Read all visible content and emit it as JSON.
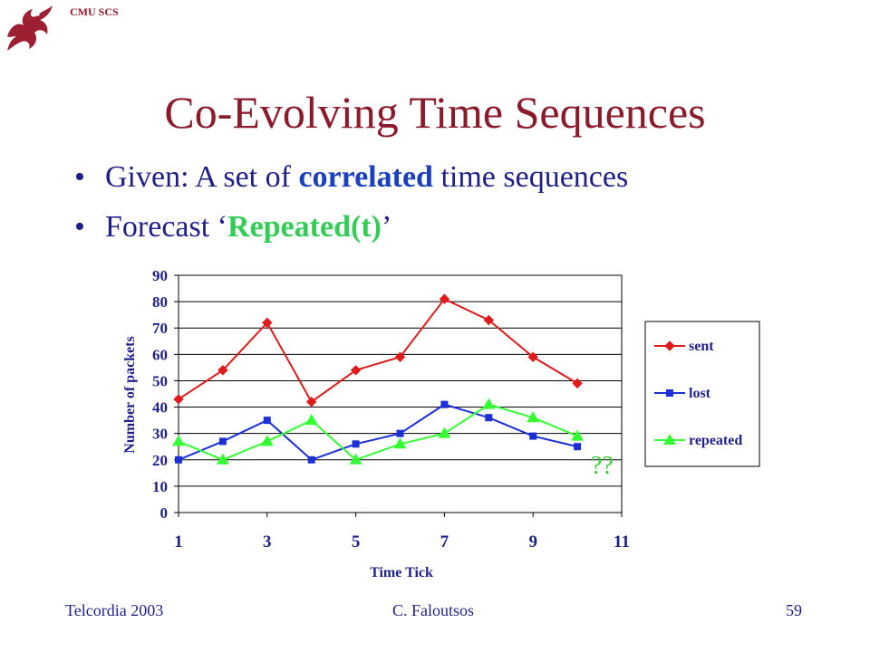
{
  "header": {
    "org": "CMU SCS"
  },
  "slide": {
    "title": "Co-Evolving Time Sequences",
    "bullets": [
      {
        "pre": "Given: A set of ",
        "emph": "correlated",
        "post": " time sequences"
      },
      {
        "pre": "Forecast ‘",
        "emph": "Repeated(t)",
        "post": "’"
      }
    ],
    "forecast_marker": "??"
  },
  "chart_data": {
    "type": "line",
    "xlabel": "Time Tick",
    "ylabel": "Number of packets",
    "x": [
      1,
      2,
      3,
      4,
      5,
      6,
      7,
      8,
      9,
      10
    ],
    "x_ticks": [
      "1",
      "3",
      "5",
      "7",
      "9",
      "11"
    ],
    "x_tick_values": [
      1,
      3,
      5,
      7,
      9,
      11
    ],
    "y_ticks": [
      "0",
      "10",
      "20",
      "30",
      "40",
      "50",
      "60",
      "70",
      "80",
      "90"
    ],
    "xlim": [
      1,
      11
    ],
    "ylim": [
      0,
      90
    ],
    "grid": "horizontal",
    "legend": "right",
    "series": [
      {
        "name": "sent",
        "color": "#e01b1b",
        "marker": "diamond",
        "values": [
          43,
          54,
          72,
          42,
          54,
          59,
          81,
          73,
          59,
          49
        ]
      },
      {
        "name": "lost",
        "color": "#1b2fd6",
        "marker": "square",
        "values": [
          20,
          27,
          35,
          20,
          26,
          30,
          41,
          36,
          29,
          25
        ]
      },
      {
        "name": "repeated",
        "color": "#33ff33",
        "marker": "triangle",
        "values": [
          27,
          20,
          27,
          35,
          20,
          26,
          30,
          41,
          36,
          29
        ]
      }
    ]
  },
  "footer": {
    "left": "Telcordia 2003",
    "center": "C. Faloutsos",
    "page": "59"
  }
}
